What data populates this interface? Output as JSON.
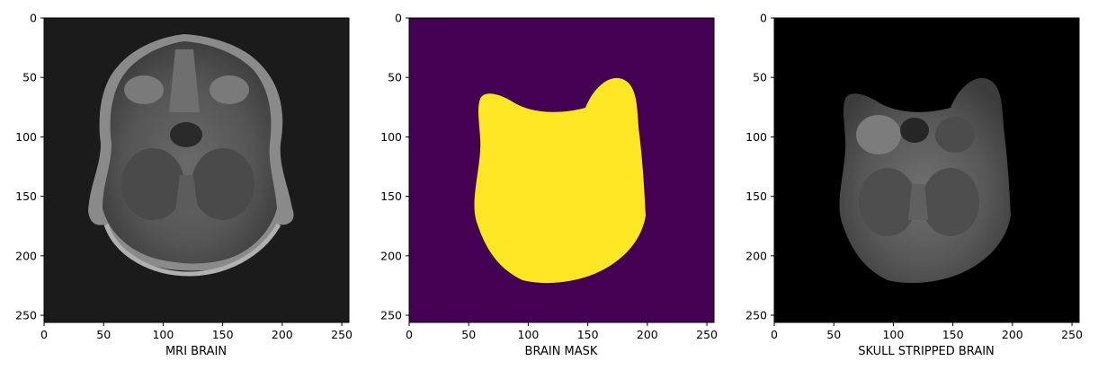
{
  "panels": [
    {
      "id": "mri",
      "xlabel": "MRI BRAIN",
      "image_kind": "grayscale mri axial slice",
      "background_color": "#1b1b1b",
      "x_ticks": [
        0,
        50,
        100,
        150,
        200,
        250
      ],
      "y_ticks": [
        0,
        50,
        100,
        150,
        200,
        250
      ],
      "xlim": [
        0,
        256
      ],
      "ylim": [
        256,
        0
      ]
    },
    {
      "id": "mask",
      "xlabel": "BRAIN MASK",
      "image_kind": "binary segmentation mask (viridis)",
      "background_color": "#440154",
      "mask_color": "#fde725",
      "x_ticks": [
        0,
        50,
        100,
        150,
        200,
        250
      ],
      "y_ticks": [
        0,
        50,
        100,
        150,
        200,
        250
      ],
      "xlim": [
        0,
        256
      ],
      "ylim": [
        256,
        0
      ]
    },
    {
      "id": "stripped",
      "xlabel": "SKULL STRIPPED BRAIN",
      "image_kind": "grayscale brain with skull removed",
      "background_color": "#000000",
      "x_ticks": [
        0,
        50,
        100,
        150,
        200,
        250
      ],
      "y_ticks": [
        0,
        50,
        100,
        150,
        200,
        250
      ],
      "xlim": [
        0,
        256
      ],
      "ylim": [
        256,
        0
      ]
    }
  ]
}
